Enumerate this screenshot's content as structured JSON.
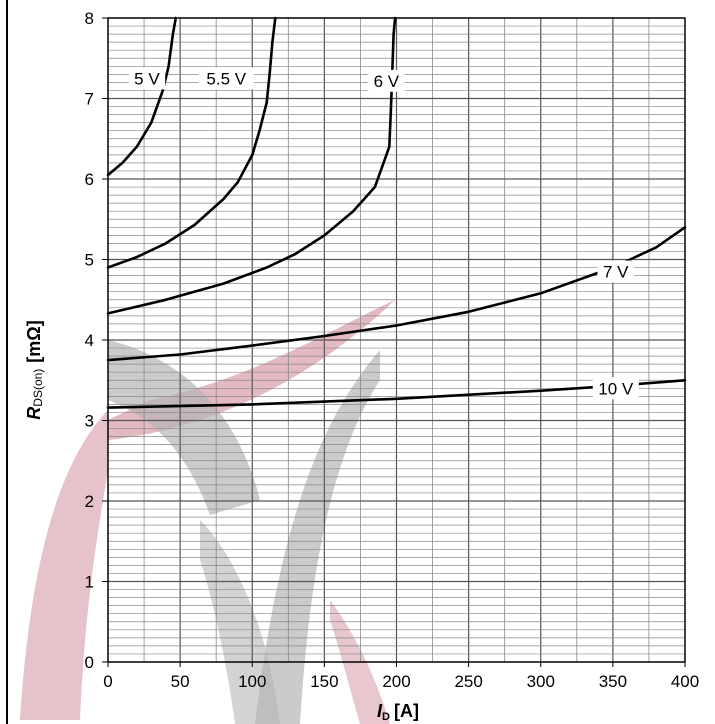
{
  "chart_data": {
    "type": "line",
    "title": "",
    "xlabel": "I",
    "xlabel_sub": "D",
    "xlabel_unit": "[A]",
    "ylabel": "R",
    "ylabel_sub": "DS(on)",
    "ylabel_unit": "[mΩ]",
    "xlim": [
      0,
      400
    ],
    "ylim": [
      0,
      8
    ],
    "xticks": [
      0,
      50,
      100,
      150,
      200,
      250,
      300,
      350,
      400
    ],
    "yticks": [
      0,
      1,
      2,
      3,
      4,
      5,
      6,
      7,
      8
    ],
    "grid": true,
    "series": [
      {
        "name": "5 V",
        "points": [
          [
            0,
            6.05
          ],
          [
            10,
            6.2
          ],
          [
            20,
            6.4
          ],
          [
            30,
            6.7
          ],
          [
            38,
            7.1
          ],
          [
            42,
            7.4
          ],
          [
            45,
            7.8
          ],
          [
            47,
            8.0
          ]
        ]
      },
      {
        "name": "5.5 V",
        "points": [
          [
            0,
            4.9
          ],
          [
            20,
            5.03
          ],
          [
            40,
            5.2
          ],
          [
            60,
            5.43
          ],
          [
            80,
            5.75
          ],
          [
            90,
            5.96
          ],
          [
            100,
            6.3
          ],
          [
            105,
            6.6
          ],
          [
            110,
            6.95
          ],
          [
            112,
            7.3
          ],
          [
            114,
            7.7
          ],
          [
            116,
            8.0
          ]
        ]
      },
      {
        "name": "6 V",
        "points": [
          [
            0,
            4.33
          ],
          [
            40,
            4.5
          ],
          [
            80,
            4.7
          ],
          [
            110,
            4.9
          ],
          [
            130,
            5.07
          ],
          [
            150,
            5.3
          ],
          [
            170,
            5.6
          ],
          [
            185,
            5.9
          ],
          [
            195,
            6.4
          ],
          [
            196,
            6.8
          ],
          [
            197,
            7.3
          ],
          [
            198,
            7.8
          ],
          [
            199,
            8.0
          ]
        ]
      },
      {
        "name": "7 V",
        "points": [
          [
            0,
            3.75
          ],
          [
            50,
            3.82
          ],
          [
            100,
            3.93
          ],
          [
            150,
            4.05
          ],
          [
            200,
            4.18
          ],
          [
            250,
            4.35
          ],
          [
            300,
            4.58
          ],
          [
            350,
            4.9
          ],
          [
            380,
            5.15
          ],
          [
            400,
            5.4
          ]
        ]
      },
      {
        "name": "10 V",
        "points": [
          [
            0,
            3.16
          ],
          [
            100,
            3.2
          ],
          [
            200,
            3.27
          ],
          [
            300,
            3.37
          ],
          [
            350,
            3.43
          ],
          [
            400,
            3.5
          ]
        ]
      }
    ],
    "watermark_colors": {
      "red": "#d9a2ad",
      "gray": "#b5b5b5"
    }
  }
}
